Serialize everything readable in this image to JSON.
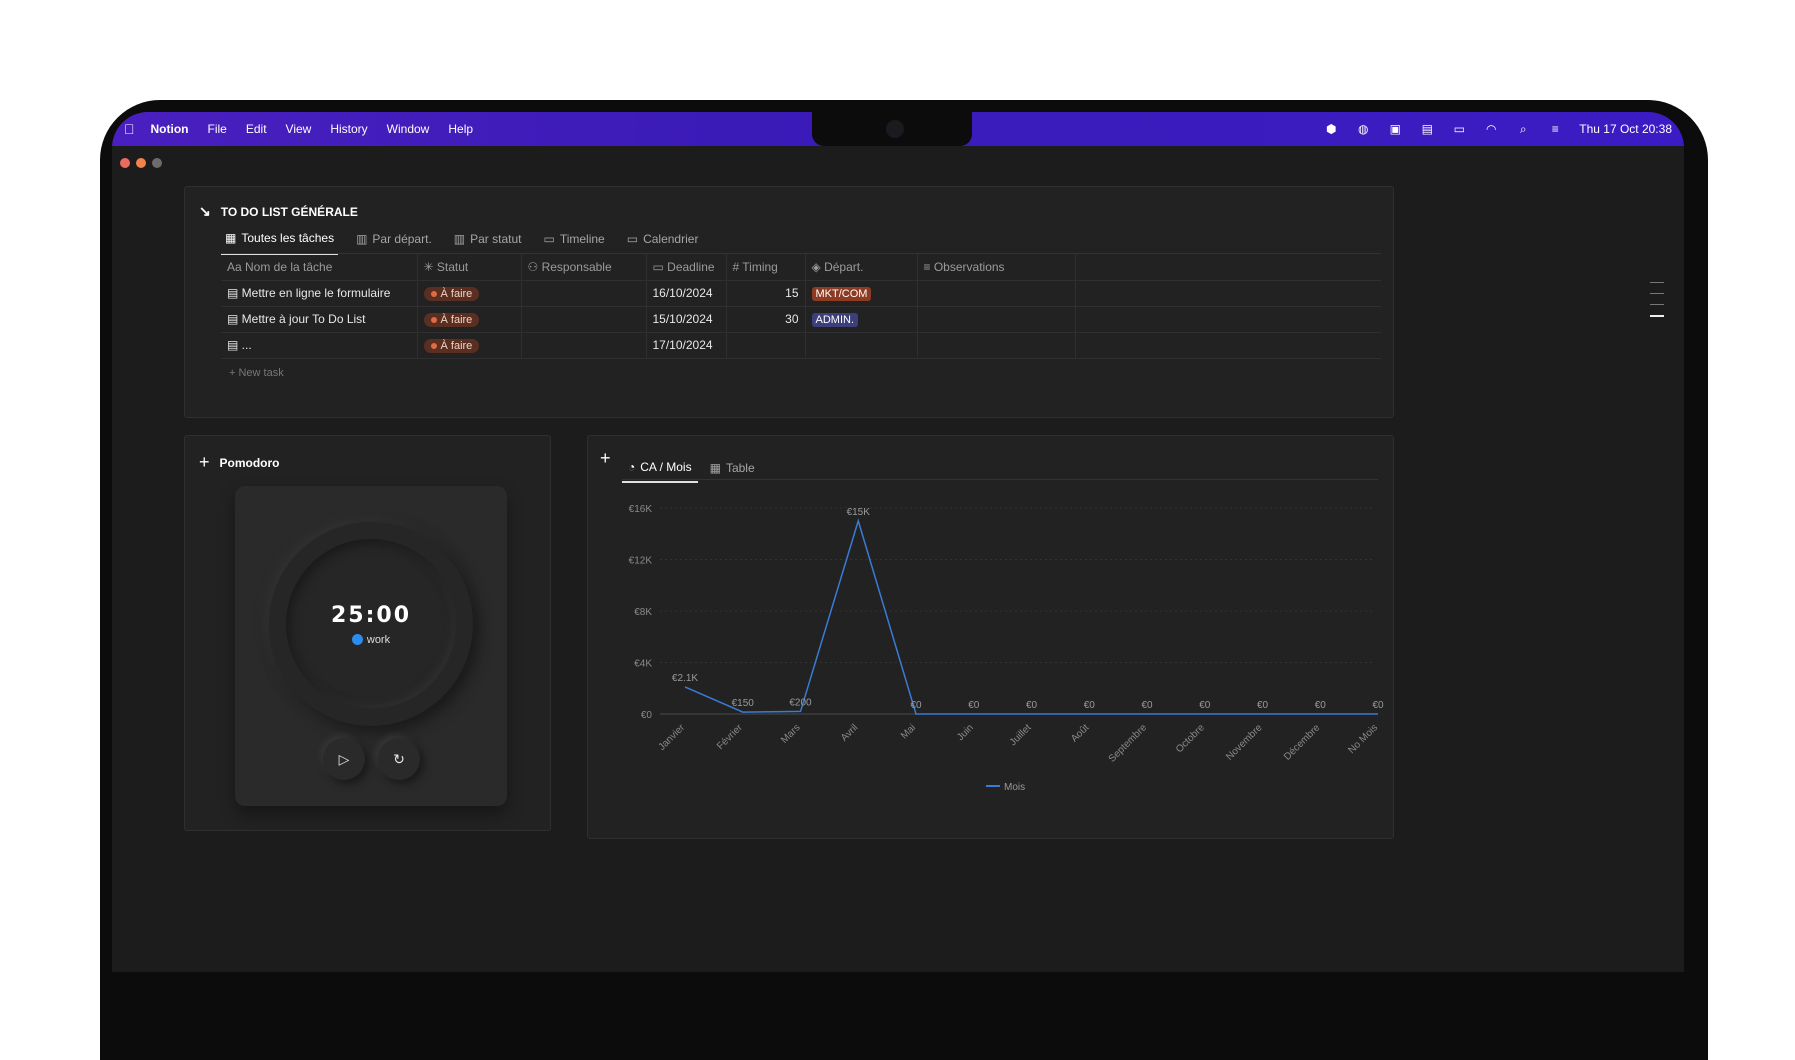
{
  "menubar": {
    "items": [
      "Notion",
      "File",
      "Edit",
      "View",
      "History",
      "Window",
      "Help"
    ],
    "datetime": "Thu 17 Oct  20:38"
  },
  "todo": {
    "title": "TO DO LIST GÉNÉRALE",
    "tabs": [
      "Toutes les tâches",
      "Par départ.",
      "Par statut",
      "Timeline",
      "Calendrier"
    ],
    "columns": [
      "Aa Nom de la tâche",
      "Statut",
      "Responsable",
      "Deadline",
      "Timing",
      "Départ.",
      "Observations"
    ],
    "rows": [
      {
        "name": "Mettre en ligne le formulaire",
        "status": "À faire",
        "responsable": "",
        "deadline": "16/10/2024",
        "timing": "15",
        "dept": "MKT/COM"
      },
      {
        "name": "Mettre à jour To Do List",
        "status": "À faire",
        "responsable": "",
        "deadline": "15/10/2024",
        "timing": "30",
        "dept": "ADMIN."
      },
      {
        "name": "...",
        "status": "À faire",
        "responsable": "",
        "deadline": "17/10/2024",
        "timing": "",
        "dept": ""
      }
    ],
    "new_task": "New task",
    "colors": {
      "mkt": "#8e3b24",
      "admin": "#3c3f7a"
    }
  },
  "pomodoro": {
    "title": "Pomodoro",
    "time": "25:00",
    "mode": "work"
  },
  "chart": {
    "tabs": [
      "CA / Mois",
      "Table"
    ],
    "legend": "Mois"
  },
  "chart_data": {
    "type": "line",
    "categories": [
      "Janvier",
      "Février",
      "Mars",
      "Avril",
      "Mai",
      "Juin",
      "Juillet",
      "Août",
      "Septembre",
      "Octobre",
      "Novembre",
      "Décembre",
      "No Mois"
    ],
    "series": [
      {
        "name": "Mois",
        "values": [
          2100,
          150,
          200,
          15000,
          0,
          0,
          0,
          0,
          0,
          0,
          0,
          0,
          0
        ],
        "labels": [
          "€2.1K",
          "€150",
          "€200",
          "€15K",
          "€0",
          "€0",
          "€0",
          "€0",
          "€0",
          "€0",
          "€0",
          "€0",
          "€0"
        ],
        "color": "#3a7bd5"
      }
    ],
    "yticks": [
      "€0",
      "€4K",
      "€8K",
      "€12K",
      "€16K"
    ],
    "ylim": [
      0,
      16000
    ],
    "grid": true,
    "legend": "bottom"
  }
}
